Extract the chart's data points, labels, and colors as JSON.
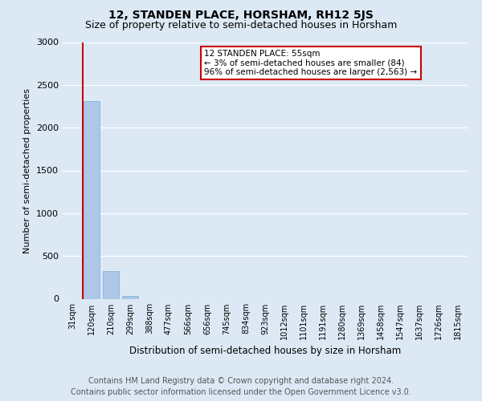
{
  "title": "12, STANDEN PLACE, HORSHAM, RH12 5JS",
  "subtitle": "Size of property relative to semi-detached houses in Horsham",
  "xlabel": "Distribution of semi-detached houses by size in Horsham",
  "ylabel": "Number of semi-detached properties",
  "bar_labels": [
    "31sqm",
    "120sqm",
    "210sqm",
    "299sqm",
    "388sqm",
    "477sqm",
    "566sqm",
    "656sqm",
    "745sqm",
    "834sqm",
    "923sqm",
    "1012sqm",
    "1101sqm",
    "1191sqm",
    "1280sqm",
    "1369sqm",
    "1458sqm",
    "1547sqm",
    "1637sqm",
    "1726sqm",
    "1815sqm"
  ],
  "bar_values": [
    0,
    2310,
    320,
    30,
    0,
    0,
    0,
    0,
    0,
    0,
    0,
    0,
    0,
    0,
    0,
    0,
    0,
    0,
    0,
    0,
    0
  ],
  "bar_color": "#aec6e8",
  "bar_edge_color": "#7aafd4",
  "ylim": [
    0,
    3000
  ],
  "yticks": [
    0,
    500,
    1000,
    1500,
    2000,
    2500,
    3000
  ],
  "annotation_line1": "12 STANDEN PLACE: 55sqm",
  "annotation_line2": "← 3% of semi-detached houses are smaller (84)",
  "annotation_line3": "96% of semi-detached houses are larger (2,563) →",
  "vline_color": "#cc0000",
  "footer_line1": "Contains HM Land Registry data © Crown copyright and database right 2024.",
  "footer_line2": "Contains public sector information licensed under the Open Government Licence v3.0.",
  "background_color": "#dce9f5",
  "plot_bg_color": "#dce9f5",
  "grid_color": "#ffffff",
  "title_fontsize": 10,
  "subtitle_fontsize": 9,
  "footer_fontsize": 7,
  "annotation_box_color": "#ffffff",
  "annotation_box_edge": "#cc0000"
}
